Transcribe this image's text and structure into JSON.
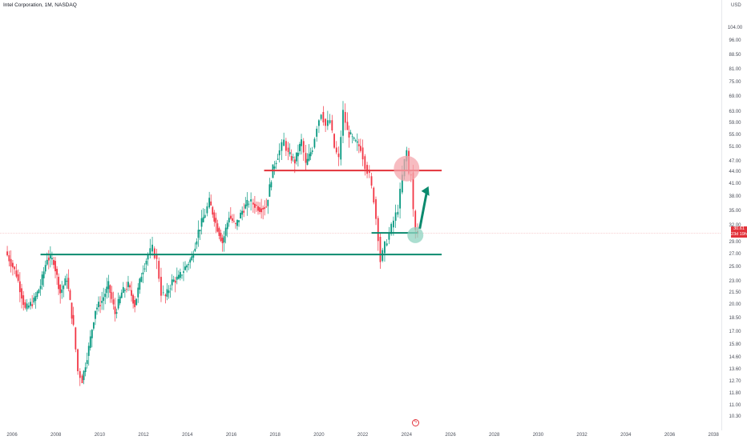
{
  "header": {
    "title": "Intel Corporation, 1M, NASDAQ",
    "currency": "USD"
  },
  "price_badge": {
    "last_price": "30.61",
    "countdown": "23d 19h"
  },
  "event_marker": {
    "icon": "lightning-icon",
    "glyph": "ϟ"
  },
  "colors": {
    "up": "#089981",
    "down": "#f23645",
    "support_line": "#0b8a6e",
    "resistance_line": "#e2323a",
    "resistance_circle": "#f4a6ac",
    "support_circle": "#8fd3c0",
    "arrow": "#0b8a6e"
  },
  "chart_data": {
    "type": "candlestick",
    "title": "Intel Corporation, 1M, NASDAQ",
    "xlabel": "",
    "ylabel": "",
    "x_ticks": [
      "2006",
      "2008",
      "2010",
      "2012",
      "2014",
      "2016",
      "2018",
      "2020",
      "2022",
      "2024",
      "2026",
      "2028",
      "2030",
      "2032",
      "2034",
      "2036",
      "2038"
    ],
    "y_ticks": [
      "10.30",
      "11.00",
      "11.80",
      "12.70",
      "13.60",
      "14.60",
      "15.80",
      "17.00",
      "18.50",
      "20.00",
      "21.50",
      "23.00",
      "25.00",
      "27.00",
      "29.00",
      "32.00",
      "35.00",
      "38.00",
      "41.00",
      "44.00",
      "47.00",
      "51.00",
      "55.00",
      "59.00",
      "63.00",
      "69.00",
      "75.00",
      "81.00",
      "88.50",
      "96.00",
      "104.00"
    ],
    "y_scale": "log",
    "ylim": [
      10.0,
      112.0
    ],
    "xlim": [
      2005.6,
      2038.3
    ],
    "last_price": 30.61,
    "price_path": [
      [
        2005.7,
        27.5
      ],
      [
        2006.2,
        24.0
      ],
      [
        2006.6,
        19.5
      ],
      [
        2007.0,
        20.5
      ],
      [
        2007.3,
        22.5
      ],
      [
        2007.6,
        26.5
      ],
      [
        2007.9,
        26.0
      ],
      [
        2008.2,
        21.5
      ],
      [
        2008.5,
        23.5
      ],
      [
        2008.8,
        17.5
      ],
      [
        2009.0,
        13.5
      ],
      [
        2009.2,
        12.8
      ],
      [
        2009.5,
        15.5
      ],
      [
        2009.8,
        19.5
      ],
      [
        2010.1,
        20.5
      ],
      [
        2010.4,
        22.5
      ],
      [
        2010.7,
        19.0
      ],
      [
        2011.0,
        21.5
      ],
      [
        2011.3,
        22.5
      ],
      [
        2011.6,
        20.0
      ],
      [
        2011.9,
        24.0
      ],
      [
        2012.2,
        27.0
      ],
      [
        2012.4,
        28.0
      ],
      [
        2012.6,
        26.0
      ],
      [
        2012.8,
        21.5
      ],
      [
        2013.0,
        21.0
      ],
      [
        2013.3,
        23.0
      ],
      [
        2013.6,
        23.5
      ],
      [
        2013.9,
        25.0
      ],
      [
        2014.2,
        26.5
      ],
      [
        2014.5,
        31.0
      ],
      [
        2014.8,
        34.5
      ],
      [
        2015.0,
        37.0
      ],
      [
        2015.3,
        32.5
      ],
      [
        2015.6,
        29.0
      ],
      [
        2015.9,
        34.0
      ],
      [
        2016.2,
        32.0
      ],
      [
        2016.5,
        35.0
      ],
      [
        2016.8,
        37.0
      ],
      [
        2017.0,
        36.5
      ],
      [
        2017.3,
        35.5
      ],
      [
        2017.6,
        36.0
      ],
      [
        2017.9,
        45.0
      ],
      [
        2018.2,
        50.0
      ],
      [
        2018.4,
        53.0
      ],
      [
        2018.6,
        49.0
      ],
      [
        2018.9,
        47.0
      ],
      [
        2019.2,
        53.0
      ],
      [
        2019.4,
        46.0
      ],
      [
        2019.7,
        51.0
      ],
      [
        2019.9,
        58.0
      ],
      [
        2020.1,
        63.0
      ],
      [
        2020.3,
        58.0
      ],
      [
        2020.5,
        60.0
      ],
      [
        2020.7,
        51.0
      ],
      [
        2020.9,
        47.5
      ],
      [
        2021.1,
        63.0
      ],
      [
        2021.3,
        56.0
      ],
      [
        2021.6,
        53.0
      ],
      [
        2021.9,
        51.0
      ],
      [
        2022.1,
        46.0
      ],
      [
        2022.3,
        43.0
      ],
      [
        2022.5,
        37.5
      ],
      [
        2022.7,
        30.0
      ],
      [
        2022.8,
        26.0
      ],
      [
        2023.0,
        28.5
      ],
      [
        2023.2,
        30.5
      ],
      [
        2023.4,
        33.0
      ],
      [
        2023.6,
        35.5
      ],
      [
        2023.8,
        43.0
      ],
      [
        2023.9,
        47.0
      ],
      [
        2024.0,
        50.0
      ],
      [
        2024.1,
        43.5
      ],
      [
        2024.2,
        44.0
      ],
      [
        2024.3,
        35.0
      ],
      [
        2024.4,
        31.0
      ],
      [
        2024.5,
        30.61
      ]
    ],
    "annotations": [
      {
        "type": "hline",
        "name": "resistance",
        "price": 44.5,
        "x_start": 2017.5,
        "x_end": 2025.6
      },
      {
        "type": "hline",
        "name": "support-long",
        "price": 27.0,
        "x_start": 2007.3,
        "x_end": 2025.6
      },
      {
        "type": "hline",
        "name": "support-short",
        "price": 30.7,
        "x_start": 2022.4,
        "x_end": 2024.5
      },
      {
        "type": "circle",
        "name": "resistance-touch",
        "x": 2024.0,
        "price": 45.0
      },
      {
        "type": "circle",
        "name": "support-touch",
        "x": 2024.4,
        "price": 30.3
      },
      {
        "type": "arrow",
        "name": "bullish-arrow",
        "from": [
          2024.6,
          31.5
        ],
        "to": [
          2025.0,
          40.5
        ]
      }
    ]
  }
}
